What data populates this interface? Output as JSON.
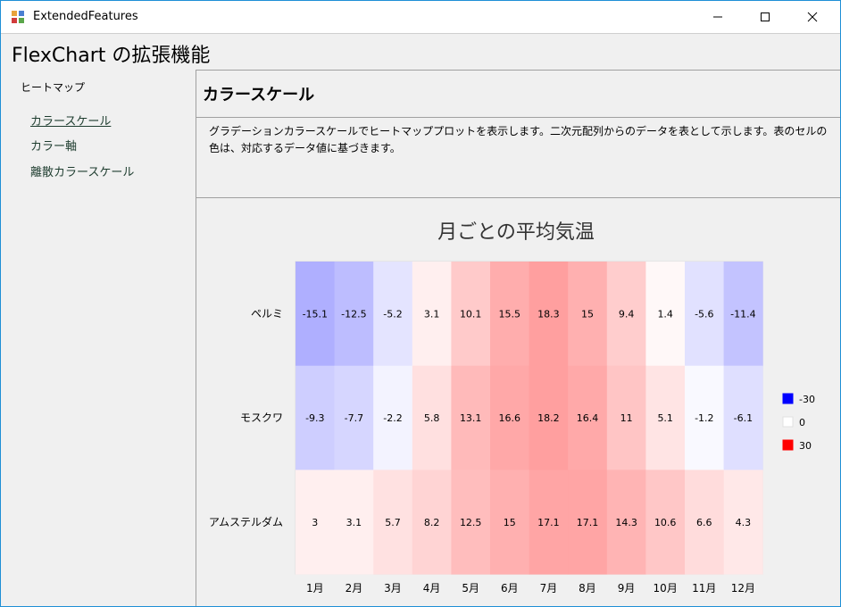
{
  "window": {
    "title": "ExtendedFeatures"
  },
  "header": {
    "title": "FlexChart の拡張機能"
  },
  "sidebar": {
    "group": "ヒートマップ",
    "items": [
      {
        "label": "カラースケール",
        "active": true
      },
      {
        "label": "カラー軸"
      },
      {
        "label": "離散カラースケール"
      }
    ]
  },
  "section": {
    "title": "カラースケール",
    "description": "グラデーションカラースケールでヒートマッププロットを表示します。二次元配列からのデータを表として示します。表のセルの色は、対応するデータ値に基づきます。"
  },
  "chart_data": {
    "type": "heatmap",
    "title": "月ごとの平均気温",
    "x": [
      "1月",
      "2月",
      "3月",
      "4月",
      "5月",
      "6月",
      "7月",
      "8月",
      "9月",
      "10月",
      "11月",
      "12月"
    ],
    "y": [
      "ペルミ",
      "モスクワ",
      "アムステルダム"
    ],
    "values": [
      [
        -15.1,
        -12.5,
        -5.2,
        3.1,
        10.1,
        15.5,
        18.3,
        15,
        9.4,
        1.4,
        -5.6,
        -11.4
      ],
      [
        -9.3,
        -7.7,
        -2.2,
        5.8,
        13.1,
        16.6,
        18.2,
        16.4,
        11,
        5.1,
        -1.2,
        -6.1
      ],
      [
        3,
        3.1,
        5.7,
        8.2,
        12.5,
        15,
        17.1,
        17.1,
        14.3,
        10.6,
        6.6,
        4.3
      ]
    ],
    "color_scale": {
      "min": -30,
      "mid": 0,
      "max": 30,
      "min_color": "#0000ff",
      "mid_color": "#ffffff",
      "max_color": "#ff0000"
    },
    "legend": {
      "position": "right",
      "items": [
        {
          "label": "-30",
          "color": "#0000ff"
        },
        {
          "label": "0",
          "color": "#ffffff"
        },
        {
          "label": "30",
          "color": "#ff0000"
        }
      ]
    }
  }
}
